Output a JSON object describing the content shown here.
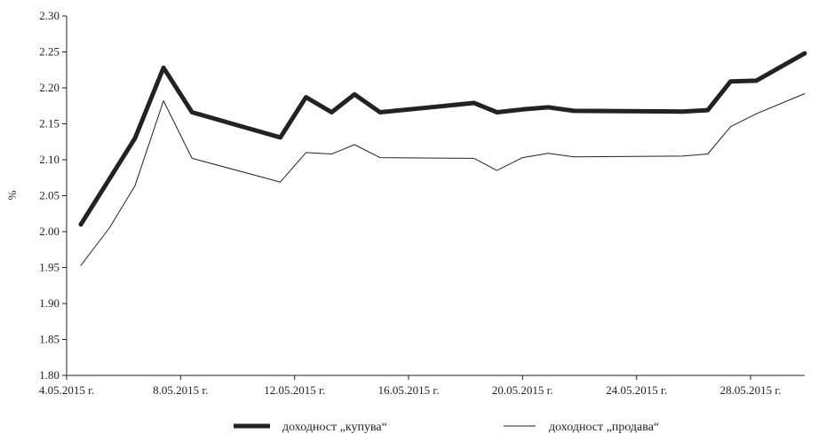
{
  "chart_data": {
    "type": "line",
    "title": "",
    "xlabel": "",
    "ylabel": "%",
    "ylim": [
      1.8,
      2.3
    ],
    "y_ticks": [
      "1.80",
      "1.85",
      "1.90",
      "1.95",
      "2.00",
      "2.05",
      "2.10",
      "2.15",
      "2.20",
      "2.25",
      "2.30"
    ],
    "x_ticks": [
      "4.05.2015 г.",
      "8.05.2015 г.",
      "12.05.2015 г.",
      "16.05.2015 г.",
      "20.05.2015 г.",
      "24.05.2015 г.",
      "28.05.2015 г."
    ],
    "x_tick_days": [
      4,
      8,
      12,
      16,
      20,
      24,
      28
    ],
    "xlim_days": [
      4,
      29.9
    ],
    "grid": false,
    "legend_position": "bottom",
    "series": [
      {
        "name": "доходност „купува“",
        "color": "#222222",
        "style": "thick",
        "x": [
          4.5,
          6.4,
          7.4,
          8.4,
          11.5,
          12.4,
          13.3,
          14.1,
          15.0,
          18.3,
          19.1,
          20.0,
          20.9,
          21.8,
          25.6,
          26.5,
          27.3,
          28.2,
          29.9
        ],
        "values": [
          2.01,
          2.13,
          2.228,
          2.166,
          2.131,
          2.187,
          2.166,
          2.191,
          2.166,
          2.179,
          2.166,
          2.17,
          2.173,
          2.168,
          2.167,
          2.169,
          2.209,
          2.21,
          2.248
        ]
      },
      {
        "name": "доходност „продава“",
        "color": "#222222",
        "style": "thin",
        "x": [
          4.5,
          5.5,
          6.4,
          7.4,
          8.4,
          11.5,
          12.4,
          13.3,
          14.1,
          15.0,
          18.3,
          19.1,
          20.0,
          20.9,
          21.8,
          25.6,
          26.5,
          27.3,
          28.2,
          29.9
        ],
        "values": [
          1.953,
          2.005,
          2.064,
          2.182,
          2.102,
          2.069,
          2.11,
          2.108,
          2.121,
          2.103,
          2.102,
          2.085,
          2.103,
          2.109,
          2.104,
          2.105,
          2.108,
          2.146,
          2.164,
          2.192
        ]
      }
    ]
  }
}
